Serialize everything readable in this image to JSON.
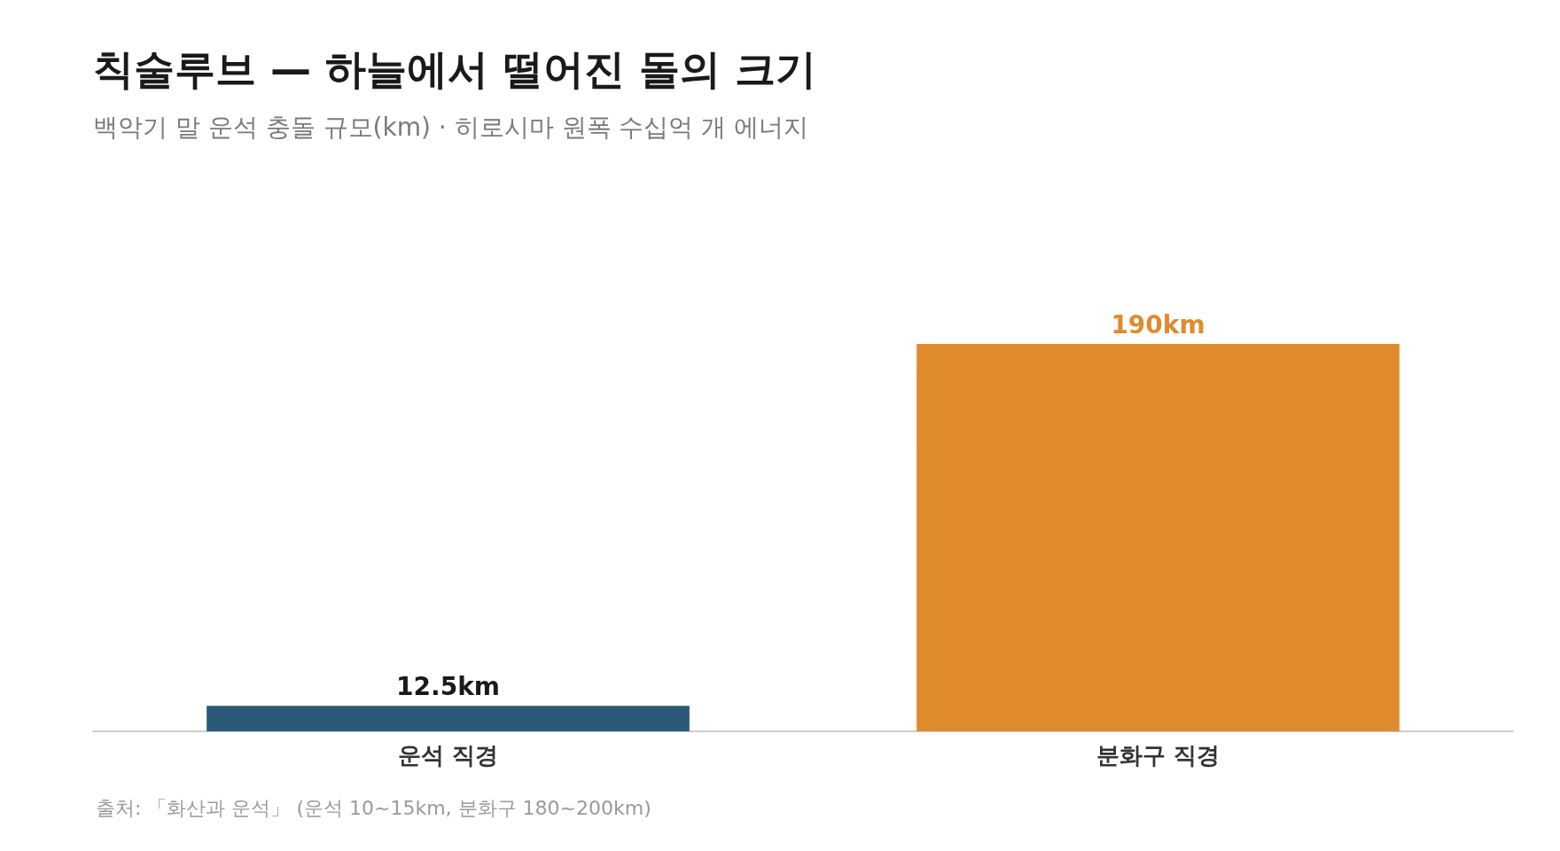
{
  "chart_data": {
    "type": "bar",
    "title": "칙술루브 — 하늘에서 떨어진 돌의 크기",
    "subtitle": "백악기 말 운석 충돌 규모(km) · 히로시마 원폭 수십억 개 에너지",
    "categories": [
      "운석 직경",
      "분화구 직경"
    ],
    "values": [
      12.5,
      190
    ],
    "colors": [
      "#2b5a78",
      "#e08a2e"
    ],
    "value_labels": [
      "12.5km",
      "190km"
    ],
    "annotations": [
      "출처: 「화산과 운석」 (운석 10~15km, 분화구 180~200km)"
    ]
  }
}
